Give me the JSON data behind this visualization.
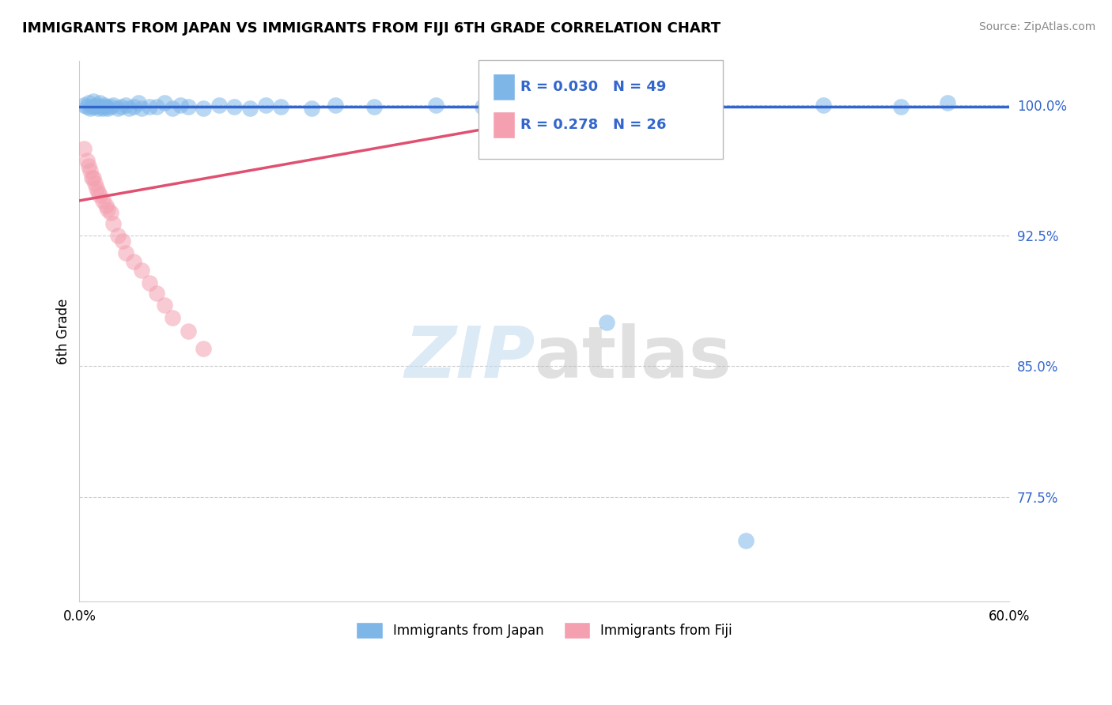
{
  "title": "IMMIGRANTS FROM JAPAN VS IMMIGRANTS FROM FIJI 6TH GRADE CORRELATION CHART",
  "source": "Source: ZipAtlas.com",
  "xlabel_japan": "Immigrants from Japan",
  "xlabel_fiji": "Immigrants from Fiji",
  "ylabel": "6th Grade",
  "xlim": [
    0.0,
    0.6
  ],
  "ylim": [
    0.715,
    1.025
  ],
  "ytick_vals": [
    0.775,
    0.85,
    0.925,
    1.0
  ],
  "ytick_labels": [
    "77.5%",
    "85.0%",
    "92.5%",
    "100.0%"
  ],
  "R_japan": 0.03,
  "N_japan": 49,
  "R_fiji": 0.278,
  "N_fiji": 26,
  "japan_color": "#7EB6E8",
  "fiji_color": "#F4A0B0",
  "japan_line_color": "#3366CC",
  "fiji_line_color": "#E05070",
  "japan_x": [
    0.003,
    0.005,
    0.006,
    0.007,
    0.008,
    0.009,
    0.01,
    0.011,
    0.012,
    0.013,
    0.014,
    0.015,
    0.016,
    0.017,
    0.018,
    0.02,
    0.022,
    0.025,
    0.027,
    0.03,
    0.032,
    0.035,
    0.038,
    0.04,
    0.045,
    0.05,
    0.055,
    0.06,
    0.065,
    0.07,
    0.08,
    0.09,
    0.1,
    0.11,
    0.12,
    0.13,
    0.15,
    0.165,
    0.19,
    0.23,
    0.26,
    0.3,
    0.34,
    0.37,
    0.4,
    0.43,
    0.48,
    0.53,
    0.56
  ],
  "japan_y": [
    1.0,
    0.999,
    1.001,
    0.998,
    0.999,
    1.002,
    0.999,
    1.0,
    0.998,
    1.001,
    0.999,
    0.998,
    1.0,
    0.999,
    0.998,
    0.999,
    1.0,
    0.998,
    0.999,
    1.0,
    0.998,
    0.999,
    1.001,
    0.998,
    0.999,
    0.999,
    1.001,
    0.998,
    1.0,
    0.999,
    0.998,
    1.0,
    0.999,
    0.998,
    1.0,
    0.999,
    0.998,
    1.0,
    0.999,
    1.0,
    0.999,
    1.001,
    0.875,
    0.999,
    1.0,
    0.75,
    1.0,
    0.999,
    1.001
  ],
  "fiji_x": [
    0.003,
    0.005,
    0.006,
    0.007,
    0.008,
    0.009,
    0.01,
    0.011,
    0.012,
    0.013,
    0.015,
    0.017,
    0.018,
    0.02,
    0.022,
    0.025,
    0.028,
    0.03,
    0.035,
    0.04,
    0.045,
    0.05,
    0.055,
    0.06,
    0.07,
    0.08
  ],
  "fiji_y": [
    0.975,
    0.968,
    0.965,
    0.962,
    0.958,
    0.958,
    0.955,
    0.952,
    0.95,
    0.948,
    0.945,
    0.942,
    0.94,
    0.938,
    0.932,
    0.925,
    0.922,
    0.915,
    0.91,
    0.905,
    0.898,
    0.892,
    0.885,
    0.878,
    0.87,
    0.86
  ],
  "fiji_line_x": [
    0.0,
    0.35
  ],
  "fiji_line_y": [
    0.945,
    1.0
  ],
  "japan_line_y": 0.999
}
